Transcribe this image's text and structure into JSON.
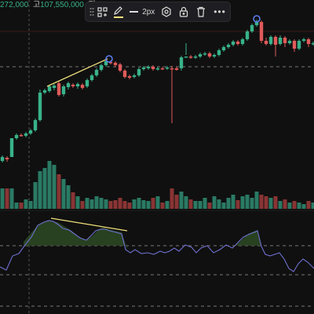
{
  "header": {
    "ohlc_prefix": "272,000",
    "high_label": "고",
    "high_value": "107,550,000",
    "low_label": "저"
  },
  "toolbar": {
    "drag_icon": "drag-handle-icon",
    "group_icon": "object-tree-icon",
    "pen_icon": "pencil-icon",
    "pen_color": "#f0e07a",
    "line_width_label": "2px",
    "settings_icon": "settings-icon",
    "lock_icon": "lock-icon",
    "delete_icon": "trash-icon",
    "more_icon": "more-icon"
  },
  "colors": {
    "background": "#101010",
    "up": "#38b28a",
    "down": "#e05a5a",
    "volume_up": "#2a7a64",
    "volume_down": "#8a3434",
    "indicator": "#6f6fd0",
    "trendline": "#f0e07a",
    "anchor": "#5b7cf0"
  }
}
